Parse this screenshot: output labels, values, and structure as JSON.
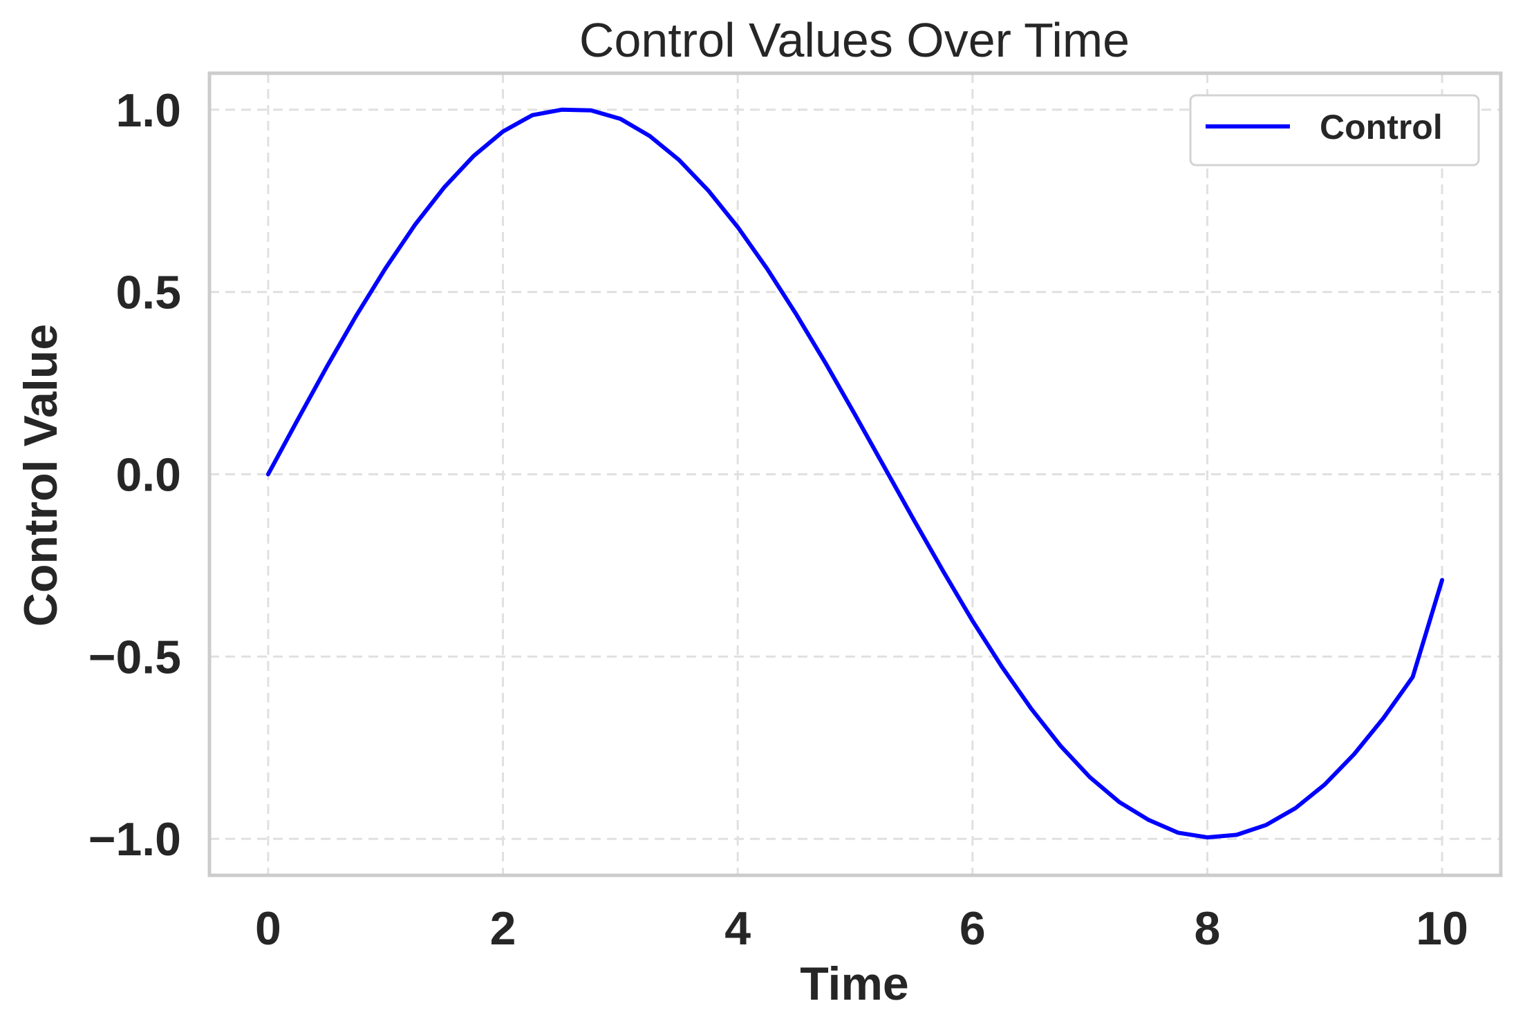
{
  "chart_data": {
    "type": "line",
    "title": "Control Values Over Time",
    "xlabel": "Time",
    "ylabel": "Control Value",
    "xlim": [
      -0.5,
      10.5
    ],
    "ylim": [
      -1.1,
      1.1
    ],
    "xticks": [
      0,
      2,
      4,
      6,
      8,
      10
    ],
    "xtick_labels": [
      "0",
      "2",
      "4",
      "6",
      "8",
      "10"
    ],
    "yticks": [
      -1.0,
      -0.5,
      0.0,
      0.5,
      1.0
    ],
    "ytick_labels": [
      "−1.0",
      "−0.5",
      "0.0",
      "0.5",
      "1.0"
    ],
    "grid": true,
    "legend_position": "top-right",
    "series": [
      {
        "name": "Control",
        "color": "#0000ff",
        "x": [
          0,
          0.25,
          0.5,
          0.75,
          1.0,
          1.25,
          1.5,
          1.75,
          2.0,
          2.25,
          2.5,
          2.75,
          3.0,
          3.25,
          3.5,
          3.75,
          4.0,
          4.25,
          4.5,
          4.75,
          5.0,
          5.25,
          5.5,
          5.75,
          6.0,
          6.25,
          6.5,
          6.75,
          7.0,
          7.25,
          7.5,
          7.75,
          8.0,
          8.25,
          8.5,
          8.75,
          9.0,
          9.25,
          9.5,
          9.75,
          10.0
        ],
        "y": [
          0.0,
          0.149,
          0.295,
          0.435,
          0.565,
          0.684,
          0.787,
          0.873,
          0.94,
          0.985,
          1.0,
          0.998,
          0.975,
          0.928,
          0.862,
          0.778,
          0.678,
          0.564,
          0.438,
          0.304,
          0.163,
          0.019,
          -0.125,
          -0.266,
          -0.402,
          -0.528,
          -0.643,
          -0.745,
          -0.831,
          -0.899,
          -0.948,
          -0.983,
          -0.996,
          -0.989,
          -0.962,
          -0.916,
          -0.851,
          -0.768,
          -0.669,
          -0.556,
          -0.29
        ]
      }
    ]
  },
  "colors": {
    "line": "#0000ff",
    "frame": "#cccccc",
    "grid": "#e0e0e0",
    "text": "#262626"
  }
}
